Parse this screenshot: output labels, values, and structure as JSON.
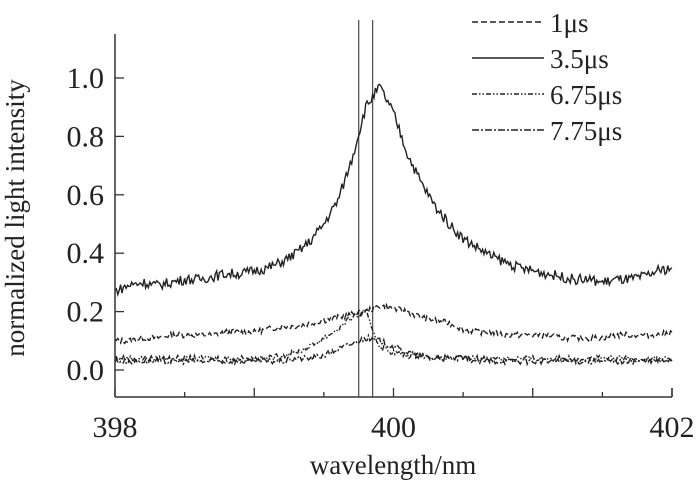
{
  "chart_data": {
    "type": "line",
    "title": "",
    "xlabel": "wavelength/nm",
    "ylabel": "normalized light intensity",
    "xlim": [
      398,
      402
    ],
    "ylim": [
      -0.1,
      1.15
    ],
    "xticks": [
      "398",
      "400",
      "402"
    ],
    "xtick_values": [
      398,
      400,
      402
    ],
    "yticks": [
      "0.0",
      "0.2",
      "0.4",
      "0.6",
      "0.8",
      "1.0"
    ],
    "ytick_values": [
      0.0,
      0.2,
      0.4,
      0.6,
      0.8,
      1.0
    ],
    "grid": false,
    "legend_position": "top-right",
    "vertical_lines": [
      399.75,
      399.85
    ],
    "x": [
      398.0,
      398.1,
      398.2,
      398.3,
      398.4,
      398.5,
      398.6,
      398.7,
      398.8,
      398.9,
      399.0,
      399.1,
      399.2,
      399.3,
      399.4,
      399.5,
      399.6,
      399.7,
      399.8,
      399.9,
      400.0,
      400.1,
      400.2,
      400.3,
      400.4,
      400.5,
      400.6,
      400.7,
      400.8,
      400.9,
      401.0,
      401.1,
      401.2,
      401.3,
      401.4,
      401.5,
      401.6,
      401.7,
      401.8,
      401.9,
      402.0
    ],
    "series": [
      {
        "name": "1μs",
        "style": "dash",
        "values": [
          0.1,
          0.1,
          0.11,
          0.11,
          0.12,
          0.12,
          0.12,
          0.12,
          0.13,
          0.13,
          0.13,
          0.14,
          0.15,
          0.15,
          0.16,
          0.17,
          0.18,
          0.19,
          0.2,
          0.22,
          0.21,
          0.2,
          0.18,
          0.17,
          0.16,
          0.14,
          0.13,
          0.13,
          0.12,
          0.12,
          0.12,
          0.12,
          0.11,
          0.11,
          0.11,
          0.11,
          0.12,
          0.12,
          0.12,
          0.12,
          0.13
        ]
      },
      {
        "name": "3.5μs",
        "style": "solid",
        "values": [
          0.27,
          0.29,
          0.3,
          0.29,
          0.3,
          0.31,
          0.31,
          0.32,
          0.33,
          0.33,
          0.34,
          0.35,
          0.37,
          0.4,
          0.44,
          0.5,
          0.58,
          0.72,
          0.9,
          0.97,
          0.88,
          0.74,
          0.64,
          0.56,
          0.5,
          0.45,
          0.42,
          0.39,
          0.37,
          0.35,
          0.34,
          0.33,
          0.32,
          0.31,
          0.31,
          0.3,
          0.31,
          0.31,
          0.32,
          0.34,
          0.35
        ]
      },
      {
        "name": "6.75μs",
        "style": "dashdotdot",
        "values": [
          0.04,
          0.04,
          0.04,
          0.04,
          0.04,
          0.04,
          0.04,
          0.04,
          0.04,
          0.04,
          0.04,
          0.04,
          0.05,
          0.06,
          0.08,
          0.11,
          0.14,
          0.18,
          0.2,
          0.08,
          0.06,
          0.05,
          0.05,
          0.04,
          0.04,
          0.04,
          0.04,
          0.04,
          0.04,
          0.04,
          0.04,
          0.04,
          0.04,
          0.04,
          0.04,
          0.04,
          0.04,
          0.04,
          0.04,
          0.04,
          0.04
        ]
      },
      {
        "name": "7.75μs",
        "style": "dashdot",
        "values": [
          0.03,
          0.03,
          0.03,
          0.03,
          0.03,
          0.03,
          0.03,
          0.03,
          0.03,
          0.03,
          0.03,
          0.03,
          0.03,
          0.04,
          0.04,
          0.05,
          0.07,
          0.09,
          0.11,
          0.1,
          0.08,
          0.06,
          0.05,
          0.04,
          0.04,
          0.04,
          0.03,
          0.03,
          0.03,
          0.03,
          0.03,
          0.03,
          0.03,
          0.03,
          0.03,
          0.03,
          0.03,
          0.03,
          0.03,
          0.03,
          0.03
        ]
      }
    ]
  }
}
